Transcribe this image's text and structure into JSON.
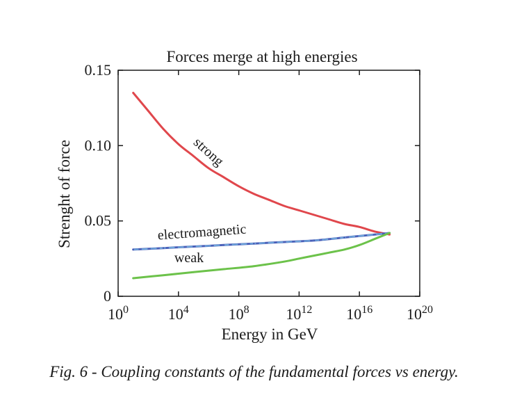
{
  "chart_data": {
    "type": "line",
    "title": "Forces merge at high energies",
    "xlabel": "Energy in GeV",
    "ylabel": "Strenght of force",
    "x_scale": "log10",
    "xlim_log10": [
      0,
      20
    ],
    "ylim": [
      0,
      0.15
    ],
    "x_ticks": [
      {
        "exp": 0,
        "base": "10",
        "sup": "0"
      },
      {
        "exp": 4,
        "base": "10",
        "sup": "4"
      },
      {
        "exp": 8,
        "base": "10",
        "sup": "8"
      },
      {
        "exp": 12,
        "base": "10",
        "sup": "12"
      },
      {
        "exp": 16,
        "base": "10",
        "sup": "16"
      },
      {
        "exp": 20,
        "base": "10",
        "sup": "20"
      }
    ],
    "y_ticks": [
      {
        "value": 0,
        "label": "0"
      },
      {
        "value": 0.05,
        "label": "0.05"
      },
      {
        "value": 0.1,
        "label": "0.10"
      },
      {
        "value": 0.15,
        "label": "0.15"
      }
    ],
    "grid": false,
    "series": [
      {
        "name": "strong",
        "label": "strong",
        "color": "#e0474c",
        "x_log10": [
          1,
          2,
          3,
          4,
          5,
          6,
          7,
          8,
          9,
          10,
          11,
          12,
          13,
          14,
          15,
          16,
          17,
          18
        ],
        "y": [
          0.135,
          0.123,
          0.111,
          0.101,
          0.093,
          0.085,
          0.079,
          0.073,
          0.068,
          0.064,
          0.06,
          0.057,
          0.054,
          0.051,
          0.048,
          0.046,
          0.043,
          0.041
        ]
      },
      {
        "name": "electromagnetic",
        "label": "electromagnetic",
        "color": "#4a5fb8",
        "color2": "#6fa8dc",
        "x_log10": [
          1,
          3,
          5,
          7,
          9,
          11,
          13,
          15,
          17,
          18
        ],
        "y": [
          0.031,
          0.032,
          0.033,
          0.034,
          0.035,
          0.036,
          0.037,
          0.039,
          0.041,
          0.042
        ]
      },
      {
        "name": "weak",
        "label": "weak",
        "color": "#6cc24a",
        "x_log10": [
          1,
          3,
          5,
          7,
          9,
          11,
          12,
          13,
          14,
          15,
          16,
          17,
          18
        ],
        "y": [
          0.012,
          0.014,
          0.016,
          0.018,
          0.02,
          0.023,
          0.025,
          0.027,
          0.029,
          0.031,
          0.034,
          0.038,
          0.042
        ]
      }
    ]
  },
  "caption": "Fig. 6 - Coupling constants of the fundamental forces vs energy."
}
